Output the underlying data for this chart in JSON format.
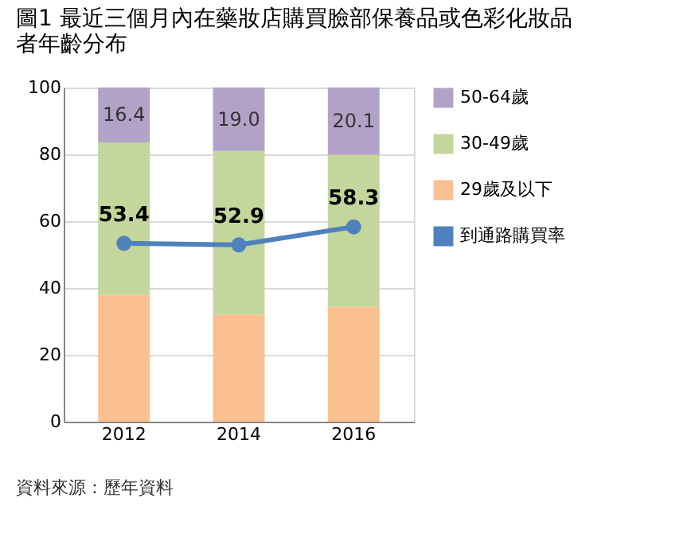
{
  "chart_data": {
    "type": "bar",
    "title": "圖1  最近三個月內在藥妝店購買臉部保養品或色彩化妝品者年齡分布",
    "categories": [
      "2012",
      "2014",
      "2016"
    ],
    "stacked": true,
    "series": [
      {
        "name": "29歲及以下",
        "color": "#fac090",
        "values": [
          38.0,
          32.0,
          34.4
        ]
      },
      {
        "name": "30-49歲",
        "color": "#c3d69b",
        "values": [
          45.6,
          49.0,
          45.5
        ]
      },
      {
        "name": "50-64歲",
        "color": "#b3a2c7",
        "values": [
          16.4,
          19.0,
          20.1
        ],
        "value_labels": [
          "16.4",
          "19.0",
          "20.1"
        ]
      },
      {
        "name": "到通路購買率",
        "type": "line",
        "color": "#4f81bd",
        "values": [
          53.4,
          52.9,
          58.3
        ],
        "value_labels": [
          "53.4",
          "52.9",
          "58.3"
        ]
      }
    ],
    "ylim": [
      0,
      100
    ],
    "yticks": [
      0,
      20,
      40,
      60,
      80,
      100
    ],
    "grid": "y",
    "legend": "right",
    "marker": "circle",
    "annotations": [
      "資料來源：歷年資料"
    ]
  }
}
